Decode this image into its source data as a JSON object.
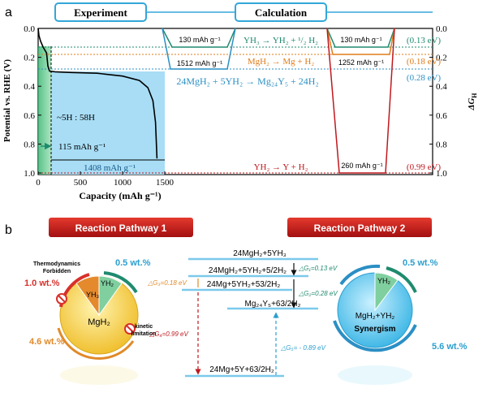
{
  "panel_a": {
    "label": "a",
    "tab_experiment": "Experiment",
    "tab_calculation": "Calculation",
    "y_left_label": "Potential vs. RHE (V)",
    "y_right_label": "ΔG",
    "y_right_sub": "H",
    "x_label": "Capacity (mAh g⁻¹)",
    "ratio_text": "~5H : 58H",
    "cap115": "115 mAh g⁻¹",
    "cap1408": "1408 mAh g⁻¹",
    "calc_130a": "130 mAh g⁻¹",
    "calc_1512": "1512 mAh g⁻¹",
    "calc_130b": "130 mAh g⁻¹",
    "calc_1252": "1252 mAh g⁻¹",
    "calc_260": "260 mAh g⁻¹",
    "rxn1": "YH₃ → YH₂ + ¹/₂ H₂",
    "rxn2": "MgH₂ → Mg + H₂",
    "rxn3": "24MgH₂ + 5YH₂ → Mg₂₄Y₅ + 24H₂",
    "rxn4": "YH₂ → Y + H₂",
    "ev1": "(0.13 eV)",
    "ev2": "(0.18 eV)",
    "ev3": "(0.28 eV)",
    "ev4": "(0.99 eV)",
    "colors": {
      "teal": "#1f8a6e",
      "orange": "#e07b1a",
      "blue": "#2b8fc4",
      "red": "#c0181e",
      "green": "#2fa96a",
      "lightblue": "#a8ddf5"
    }
  },
  "chart_data": {
    "type": "line",
    "title": "",
    "xlabel": "Capacity (mAh g⁻¹)",
    "ylabel": "Potential vs. RHE (V)",
    "xlim": [
      0,
      1500
    ],
    "ylim": [
      0.0,
      1.0
    ],
    "x_ticks": [
      "0",
      "500",
      "1000",
      "1500"
    ],
    "y_ticks_left": [
      "0.0",
      "0.2",
      "0.4",
      "0.6",
      "0.8",
      "1.0"
    ],
    "y_ticks_right": [
      "0.0",
      "0.2",
      "0.4",
      "0.6",
      "0.8",
      "1.0"
    ],
    "series": [
      {
        "x": [
          0,
          10,
          30,
          60,
          100,
          115,
          135,
          200,
          400,
          700,
          1000,
          1200,
          1300,
          1360,
          1390,
          1408
        ],
        "values": [
          0.0,
          0.05,
          0.09,
          0.13,
          0.17,
          0.26,
          0.295,
          0.3,
          0.305,
          0.31,
          0.33,
          0.36,
          0.41,
          0.5,
          0.65,
          0.9
        ]
      }
    ]
  },
  "panel_b": {
    "label": "b",
    "pathway1": "Reaction Pathway 1",
    "pathway2": "Reaction Pathway 2",
    "thermo": "Thermodynamics",
    "forbidden": "Forbidden",
    "kinetic": "kinetic",
    "limitation": "limitation",
    "wt_1": "1.0 wt.%",
    "wt_05a": "0.5 wt.%",
    "wt_46": "4.6 wt.%",
    "yh3": "YH₃",
    "yh2": "YH₂",
    "mgh2": "MgH₂",
    "wt_05b": "0.5 wt.%",
    "yh2b": "YH₂",
    "mgh2_yh2": "MgH₂+YH₂",
    "synergism": "Synergism",
    "wt_56": "5.6 wt.%",
    "level1": "24MgH₂+5YH₃",
    "level2": "24MgH₂+5YH₂+5/2H₂",
    "level3": "24Mg+5YH₂+53/2H₂",
    "level4": "Mg₂₄Y₅+63/2H₂",
    "level5": "24Mg+5Y+63/2H₂",
    "dg1": "△G₁=0.13 eV",
    "dg2": "△G₂=0.28 eV",
    "dg3": "△G₃=0.18 eV",
    "dg4": "△G₄=0.99 eV",
    "dg5": "△G₅= - 0.89 eV"
  }
}
